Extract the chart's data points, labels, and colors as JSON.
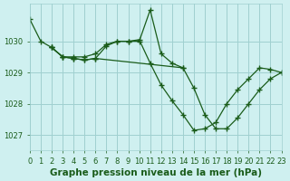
{
  "background_color": "#cff0f0",
  "grid_color": "#a0d0d0",
  "line_color": "#1a5c1a",
  "title": "Graphe pression niveau de la mer (hPa)",
  "xlim": [
    0,
    23
  ],
  "ylim": [
    1026.5,
    1031.2
  ],
  "yticks": [
    1027,
    1028,
    1029,
    1030
  ],
  "xticks": [
    0,
    1,
    2,
    3,
    4,
    5,
    6,
    7,
    8,
    9,
    10,
    11,
    12,
    13,
    14,
    15,
    16,
    17,
    18,
    19,
    20,
    21,
    22,
    23
  ],
  "series": [
    {
      "x": [
        0,
        1,
        2,
        3,
        4,
        5,
        6,
        7,
        8,
        9,
        10,
        11,
        12,
        13,
        14
      ],
      "y": [
        1030.7,
        1030.0,
        1029.8,
        1029.5,
        1029.5,
        1029.5,
        1029.6,
        1029.9,
        1030.0,
        1030.0,
        1030.0,
        1031.0,
        1029.6,
        1029.3,
        1029.15
      ]
    },
    {
      "x": [
        2,
        3,
        4,
        5,
        6,
        7,
        8,
        9,
        10,
        11,
        12,
        13,
        14,
        15,
        16,
        17,
        18,
        19,
        20,
        21,
        22,
        23
      ],
      "y": [
        1029.8,
        1029.5,
        1029.45,
        1029.4,
        1029.45,
        1029.85,
        1030.0,
        1030.0,
        1030.05,
        1029.3,
        1028.6,
        1028.1,
        1027.65,
        1027.15,
        1027.2,
        1027.4,
        1028.0,
        1028.45,
        1028.8,
        1029.15,
        1029.1,
        1029.0
      ]
    },
    {
      "x": [
        2,
        3,
        4,
        5,
        6,
        14,
        15,
        16,
        17,
        18,
        19,
        20,
        21,
        22,
        23
      ],
      "y": [
        1029.8,
        1029.5,
        1029.45,
        1029.4,
        1029.45,
        1029.15,
        1028.5,
        1027.65,
        1027.2,
        1027.2,
        1027.55,
        1028.0,
        1028.45,
        1028.8,
        1029.0
      ]
    }
  ],
  "title_fontsize": 7.5,
  "tick_fontsize": 6.0,
  "title_color": "#1a5c1a",
  "tick_color": "#1a5c1a"
}
